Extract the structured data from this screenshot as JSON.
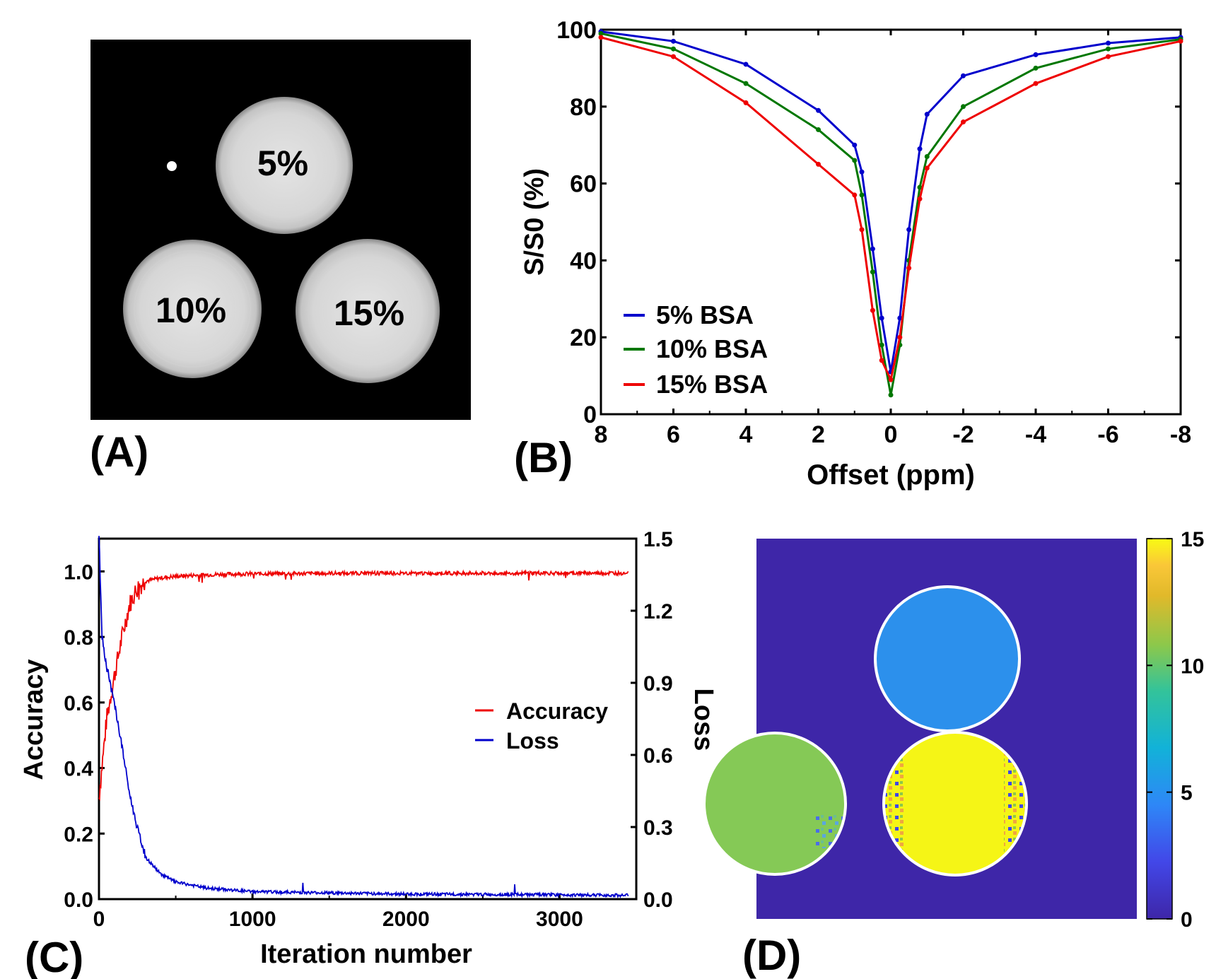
{
  "panels": {
    "a": {
      "label": "(A)",
      "phantom_labels": [
        "5%",
        "10%",
        "15%"
      ]
    },
    "d": {
      "label": "(D)",
      "colorbar": {
        "min": 0,
        "max": 15,
        "ticks": [
          "0",
          "5",
          "10",
          "15"
        ]
      },
      "phantom_values": [
        5,
        10,
        15
      ],
      "background_value": 0
    }
  },
  "chart_data": [
    {
      "id": "B",
      "label": "(B)",
      "type": "line",
      "title": "",
      "xlabel": "Offset (ppm)",
      "ylabel": "S/S0 (%)",
      "xlim": [
        8,
        -8
      ],
      "ylim": [
        0,
        100
      ],
      "x_reversed": true,
      "xticks": [
        8,
        6,
        4,
        2,
        0,
        -2,
        -4,
        -6,
        -8
      ],
      "xtick_labels": [
        "8",
        "6",
        "4",
        "2",
        "0",
        "-2",
        "-4",
        "-6",
        "-8"
      ],
      "yticks": [
        0,
        20,
        40,
        60,
        80,
        100
      ],
      "ytick_labels": [
        "0",
        "20",
        "40",
        "60",
        "80",
        "100"
      ],
      "legend_position": "bottom-left",
      "x": [
        8,
        6,
        4,
        2,
        1,
        0.8,
        0.5,
        0.25,
        0,
        -0.25,
        -0.5,
        -0.8,
        -1,
        -2,
        -4,
        -6,
        -8
      ],
      "series": [
        {
          "name": "5% BSA",
          "color": "#0000cc",
          "values": [
            99.5,
            97,
            91,
            79,
            70,
            63,
            43,
            25,
            11,
            25,
            48,
            69,
            78,
            88,
            93.5,
            96.5,
            98
          ]
        },
        {
          "name": "10% BSA",
          "color": "#007700",
          "values": [
            99,
            95,
            86,
            74,
            66,
            57,
            37,
            18,
            5,
            18,
            40,
            59,
            67,
            80,
            90,
            95,
            97.5
          ]
        },
        {
          "name": "15% BSA",
          "color": "#ee0000",
          "values": [
            98,
            93,
            81,
            65,
            57,
            48,
            27,
            14,
            9,
            20,
            38,
            56,
            64,
            76,
            86,
            93,
            97
          ]
        }
      ]
    },
    {
      "id": "C",
      "label": "(C)",
      "type": "line",
      "title": "",
      "xlabel": "Iteration number",
      "ylabel": "Accuracy",
      "y2label": "Loss",
      "xlim": [
        0,
        3500
      ],
      "ylim": [
        0,
        1.1
      ],
      "y2lim": [
        0,
        1.5
      ],
      "xticks": [
        0,
        1000,
        2000,
        3000
      ],
      "xtick_labels": [
        "0",
        "1000",
        "2000",
        "3000"
      ],
      "yticks": [
        0,
        0.2,
        0.4,
        0.6,
        0.8,
        1.0
      ],
      "ytick_labels": [
        "0.0",
        "0.2",
        "0.4",
        "0.6",
        "0.8",
        "1.0"
      ],
      "y2ticks": [
        0,
        0.3,
        0.6,
        0.9,
        1.2,
        1.5
      ],
      "y2tick_labels": [
        "0.0",
        "0.3",
        "0.6",
        "0.9",
        "1.2",
        "1.5"
      ],
      "legend_position": "center-right",
      "series": [
        {
          "name": "Accuracy",
          "color": "#ee0000",
          "axis": "left",
          "x": [
            0,
            50,
            100,
            150,
            200,
            250,
            300,
            400,
            500,
            700,
            1000,
            2000,
            3000,
            3450
          ],
          "values": [
            0.31,
            0.55,
            0.68,
            0.8,
            0.9,
            0.95,
            0.97,
            0.98,
            0.985,
            0.99,
            0.993,
            0.995,
            0.995,
            0.995
          ]
        },
        {
          "name": "Loss",
          "color": "#0000cc",
          "axis": "right",
          "x": [
            0,
            20,
            50,
            100,
            150,
            200,
            250,
            300,
            400,
            500,
            700,
            1000,
            2000,
            3000,
            3450
          ],
          "values": [
            1.5,
            1.08,
            0.95,
            0.8,
            0.62,
            0.42,
            0.28,
            0.17,
            0.1,
            0.065,
            0.04,
            0.025,
            0.015,
            0.012,
            0.01
          ]
        }
      ]
    }
  ]
}
